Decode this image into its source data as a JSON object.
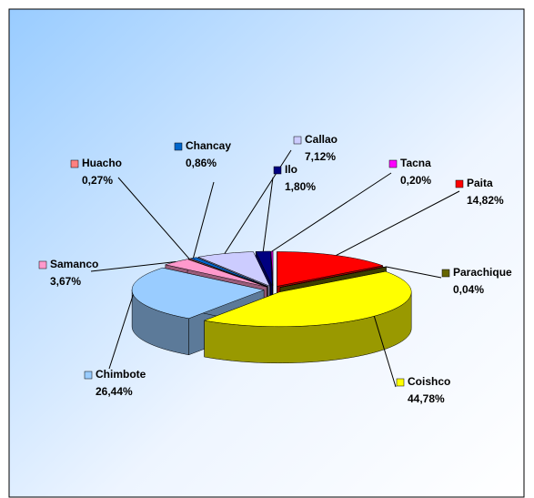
{
  "chart_data": {
    "type": "pie",
    "categories": [
      "Paita",
      "Parachique",
      "Coishco",
      "Chimbote",
      "Samanco",
      "Huacho",
      "Chancay",
      "Callao",
      "Ilo",
      "Tacna"
    ],
    "values": [
      14.82,
      0.04,
      44.78,
      26.44,
      3.67,
      0.27,
      0.86,
      7.12,
      1.8,
      0.2
    ],
    "value_labels": [
      "14,82%",
      "0,04%",
      "44,78%",
      "26,44%",
      "3,67%",
      "0,27%",
      "0,86%",
      "7,12%",
      "1,80%",
      "0,20%"
    ],
    "colors": [
      "#ff0000",
      "#666600",
      "#ffff00",
      "#99ccff",
      "#ff99cc",
      "#ff8080",
      "#0066cc",
      "#ccccff",
      "#000080",
      "#ff00ff"
    ]
  }
}
